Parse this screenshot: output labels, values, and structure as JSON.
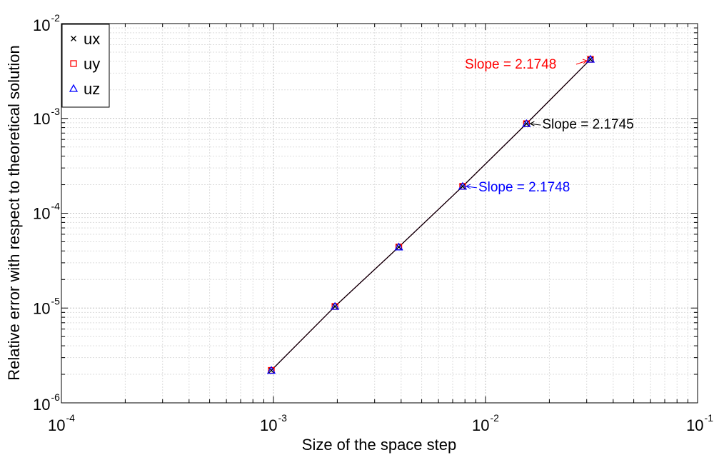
{
  "chart_data": {
    "type": "line",
    "xlabel": "Size of the space step",
    "ylabel": "Relative error with respect to theoretical solution",
    "xscale": "log",
    "yscale": "log",
    "xlim": [
      0.0001,
      0.1
    ],
    "ylim": [
      1e-06,
      0.01
    ],
    "grid": true,
    "legend_position": "top-left",
    "x_ticks": [
      {
        "base": "10",
        "exp": "-4"
      },
      {
        "base": "10",
        "exp": "-3"
      },
      {
        "base": "10",
        "exp": "-2"
      },
      {
        "base": "10",
        "exp": "-1"
      }
    ],
    "y_ticks": [
      {
        "base": "10",
        "exp": "-6"
      },
      {
        "base": "10",
        "exp": "-5"
      },
      {
        "base": "10",
        "exp": "-4"
      },
      {
        "base": "10",
        "exp": "-3"
      },
      {
        "base": "10",
        "exp": "-2"
      }
    ],
    "x": [
      0.000977,
      0.00195,
      0.0039,
      0.0078,
      0.0156,
      0.03125
    ],
    "series": [
      {
        "name": "ux",
        "marker": "x",
        "color": "#000000",
        "values": [
          2.2e-06,
          1.04e-05,
          4.4e-05,
          0.000192,
          0.00088,
          0.0042
        ]
      },
      {
        "name": "uy",
        "marker": "square",
        "color": "#ff0000",
        "values": [
          2.2e-06,
          1.04e-05,
          4.4e-05,
          0.000192,
          0.00088,
          0.0042
        ]
      },
      {
        "name": "uz",
        "marker": "triangle",
        "color": "#0000ff",
        "values": [
          2.2e-06,
          1.04e-05,
          4.4e-05,
          0.000192,
          0.00088,
          0.0042
        ]
      }
    ],
    "annotations": [
      {
        "text": "Slope = 2.1748",
        "color": "#ff0000",
        "x": 0.03125,
        "y": 0.0042,
        "side": "left"
      },
      {
        "text": "Slope = 2.1745",
        "color": "#000000",
        "x": 0.0156,
        "y": 0.00088,
        "side": "right"
      },
      {
        "text": "Slope = 2.1748",
        "color": "#0000ff",
        "x": 0.0078,
        "y": 0.000192,
        "side": "right"
      }
    ]
  }
}
